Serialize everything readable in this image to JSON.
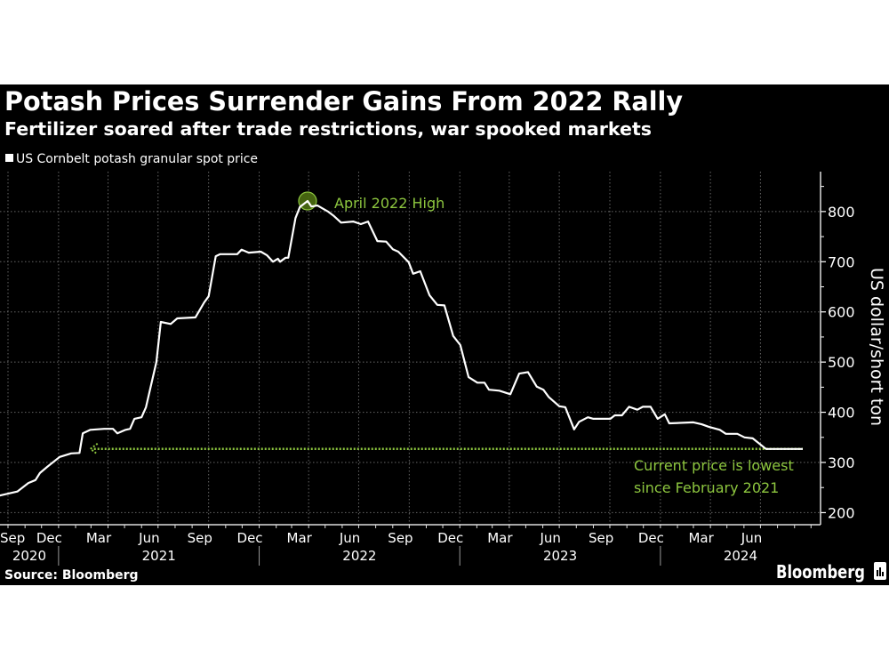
{
  "header": {
    "title": "Potash Prices Surrender Gains From 2022 Rally",
    "subtitle": "Fertilizer soared after trade restrictions, war spooked markets"
  },
  "footer": {
    "source": "Source: Bloomberg",
    "logo_text": "Bloomberg"
  },
  "colors": {
    "background": "#000000",
    "line": "#ffffff",
    "annotation": "#8dc63f",
    "marker_fill": "#4d6e12",
    "grid": "#666666"
  },
  "chart_data": {
    "type": "line",
    "legend": {
      "label": "US Cornbelt potash granular spot price",
      "placement": "top-left"
    },
    "ylabel": "US dollar/short ton",
    "ylim": [
      176,
      880
    ],
    "y_axis_side": "right",
    "yticks": [
      200,
      300,
      400,
      500,
      600,
      700,
      800
    ],
    "xlim": [
      "2020-09-16",
      "2024-10-12"
    ],
    "grid": true,
    "x_month_labels": [
      {
        "date": "2020-09-15",
        "label": "Sep"
      },
      {
        "date": "2020-12-15",
        "label": "Dec"
      },
      {
        "date": "2021-03-15",
        "label": "Mar"
      },
      {
        "date": "2021-06-15",
        "label": "Jun"
      },
      {
        "date": "2021-09-15",
        "label": "Sep"
      },
      {
        "date": "2021-12-15",
        "label": "Dec"
      },
      {
        "date": "2022-03-15",
        "label": "Mar"
      },
      {
        "date": "2022-06-15",
        "label": "Jun"
      },
      {
        "date": "2022-09-15",
        "label": "Sep"
      },
      {
        "date": "2022-12-15",
        "label": "Dec"
      },
      {
        "date": "2023-03-15",
        "label": "Mar"
      },
      {
        "date": "2023-06-15",
        "label": "Jun"
      },
      {
        "date": "2023-09-15",
        "label": "Sep"
      },
      {
        "date": "2023-12-15",
        "label": "Dec"
      },
      {
        "date": "2024-03-15",
        "label": "Mar"
      },
      {
        "date": "2024-06-15",
        "label": "Jun"
      }
    ],
    "x_year_labels": [
      "2020",
      "2021",
      "2022",
      "2023",
      "2024"
    ],
    "series": [
      {
        "x": [
          "2020-09-16",
          "2020-10-18",
          "2020-11-07",
          "2020-11-20",
          "2020-11-28",
          "2020-12-11",
          "2021-01-03",
          "2021-01-24",
          "2021-02-08",
          "2021-02-14",
          "2021-02-28",
          "2021-03-25",
          "2021-04-10",
          "2021-04-18",
          "2021-05-03",
          "2021-05-11",
          "2021-05-19",
          "2021-06-01",
          "2021-06-09",
          "2021-06-28",
          "2021-07-06",
          "2021-07-24",
          "2021-08-05",
          "2021-09-07",
          "2021-09-23",
          "2021-10-01",
          "2021-10-14",
          "2021-10-22",
          "2021-11-22",
          "2021-11-30",
          "2021-12-13",
          "2022-01-04",
          "2022-01-15",
          "2022-01-26",
          "2022-02-04",
          "2022-02-08",
          "2022-02-18",
          "2022-02-23",
          "2022-03-08",
          "2022-03-16",
          "2022-03-30",
          "2022-04-06",
          "2022-04-17",
          "2022-05-06",
          "2022-05-17",
          "2022-05-30",
          "2022-06-21",
          "2022-07-05",
          "2022-07-18",
          "2022-08-04",
          "2022-08-20",
          "2022-09-01",
          "2022-09-11",
          "2022-09-30",
          "2022-10-08",
          "2022-10-21",
          "2022-11-07",
          "2022-11-21",
          "2022-12-04",
          "2022-12-20",
          "2023-01-02",
          "2023-01-17",
          "2023-02-02",
          "2023-02-15",
          "2023-02-23",
          "2023-03-14",
          "2023-04-03",
          "2023-04-19",
          "2023-05-05",
          "2023-05-21",
          "2023-06-02",
          "2023-06-12",
          "2023-07-01",
          "2023-07-12",
          "2023-07-28",
          "2023-08-06",
          "2023-08-22",
          "2023-09-01",
          "2023-10-02",
          "2023-10-10",
          "2023-10-23",
          "2023-11-05",
          "2023-11-20",
          "2023-11-30",
          "2023-12-14",
          "2023-12-27",
          "2024-01-09",
          "2024-01-17",
          "2024-03-01",
          "2024-03-16",
          "2024-03-29",
          "2024-04-18",
          "2024-04-29",
          "2024-05-20",
          "2024-06-02",
          "2024-06-17",
          "2024-07-11",
          "2024-09-16"
        ],
        "y": [
          234,
          242,
          259,
          265,
          279,
          291,
          311,
          318,
          319,
          358,
          365,
          367,
          367,
          358,
          365,
          367,
          387,
          390,
          410,
          500,
          580,
          576,
          587,
          589,
          619,
          631,
          711,
          715,
          715,
          724,
          718,
          720,
          713,
          700,
          706,
          700,
          708,
          708,
          787,
          809,
          821,
          810,
          812,
          800,
          791,
          778,
          780,
          775,
          780,
          741,
          740,
          725,
          720,
          699,
          676,
          681,
          633,
          614,
          613,
          552,
          534,
          470,
          459,
          459,
          445,
          443,
          436,
          477,
          480,
          451,
          445,
          430,
          412,
          410,
          366,
          381,
          390,
          387,
          387,
          394,
          394,
          411,
          405,
          411,
          411,
          387,
          396,
          378,
          380,
          376,
          371,
          365,
          357,
          357,
          350,
          348,
          327,
          327
        ]
      }
    ],
    "annotations": [
      {
        "type": "marker",
        "date": "2022-03-30",
        "value": 821,
        "text": "April 2022 High"
      },
      {
        "type": "reference-line",
        "from_date": "2021-02-28",
        "to_date": "2024-09-16",
        "value": 327,
        "text_lines": [
          "Current price is lowest",
          "since February 2021"
        ]
      }
    ]
  }
}
